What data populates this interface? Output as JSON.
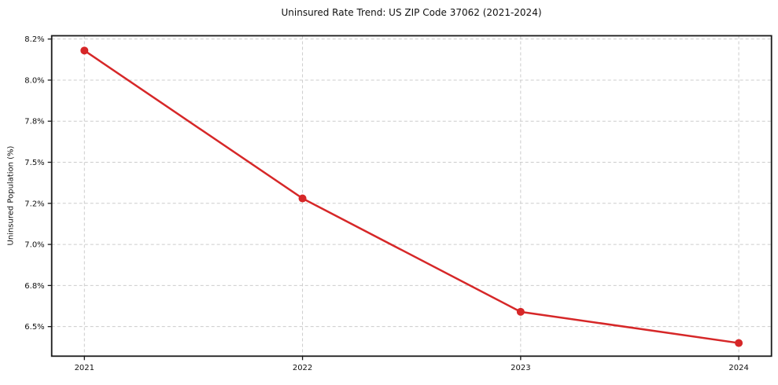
{
  "chart_data": {
    "type": "line",
    "title": "Uninsured Rate Trend: US ZIP Code 37062 (2021-2024)",
    "xlabel": "",
    "ylabel": "Uninsured Population (%)",
    "x": [
      2021,
      2022,
      2023,
      2024
    ],
    "values": [
      8.18,
      7.28,
      6.59,
      6.4
    ],
    "xlim": [
      2020.85,
      2024.15
    ],
    "ylim": [
      6.32,
      8.27
    ],
    "xticks": {
      "values": [
        2021,
        2022,
        2023,
        2024
      ],
      "labels": [
        "2021",
        "2022",
        "2023",
        "2024"
      ]
    },
    "yticks": {
      "values": [
        6.5,
        6.75,
        7.0,
        7.25,
        7.5,
        7.75,
        8.0,
        8.25
      ],
      "labels": [
        "6.5%",
        "6.8%",
        "7.0%",
        "7.2%",
        "7.5%",
        "7.8%",
        "8.0%",
        "8.2%"
      ]
    },
    "grid": true,
    "grid_style": "dashed",
    "legend": "none",
    "line_color": "#d62728",
    "grid_color": "#cccccc",
    "spine_color": "#1a1a1a",
    "tick_label_color": "#111111",
    "marker": "circle",
    "marker_radius": 5,
    "line_width": 2.5
  }
}
